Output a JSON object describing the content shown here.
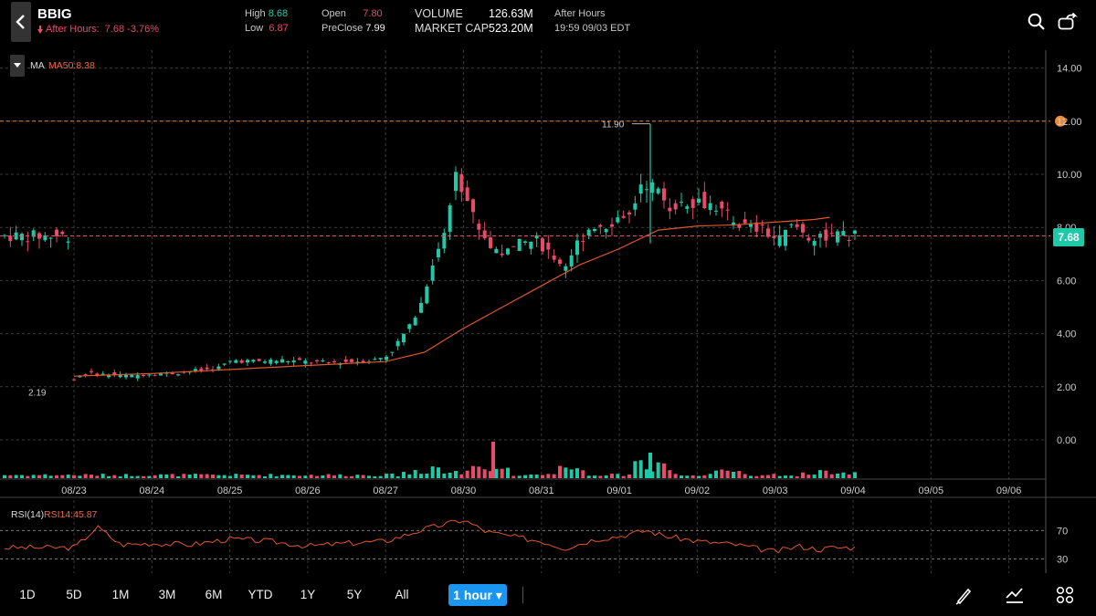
{
  "header": {
    "ticker": "BBIG",
    "after_hours_text": "After Hours:",
    "after_hours_value": "7.68 -3.76%",
    "high_label": "High",
    "high_value": "8.68",
    "low_label": "Low",
    "low_value": "6.87",
    "open_label": "Open",
    "open_value": "7.80",
    "preclose_label": "PreClose",
    "preclose_value": "7.99",
    "volume_label": "VOLUME",
    "volume_value": "126.63M",
    "mktcap_label": "MARKET CAP",
    "mktcap_value": "523.20M",
    "session_label": "After Hours",
    "session_time": "19:59 09/03 EDT"
  },
  "indicators": {
    "ma_label": "MA",
    "ma_value": "MA50:8.38",
    "rsi_label": "RSI(14)",
    "rsi_value": "RSI14:45.87"
  },
  "price_tag": "7.68",
  "bottom": {
    "ranges": [
      "1D",
      "5D",
      "1M",
      "3M",
      "6M",
      "YTD",
      "1Y",
      "5Y",
      "All"
    ],
    "interval": "1 hour ▾"
  },
  "colors": {
    "up": "#1fc9a8",
    "down": "#e84a6a",
    "ma_line": "#e0552e",
    "grid": "#3a3a3a",
    "interval_button": "#1a96f0"
  },
  "chart_data": {
    "type": "candlestick",
    "y_ticks": [
      "14.00",
      "12.00",
      "10.00",
      "8.00",
      "6.00",
      "4.00",
      "2.00",
      "0.00"
    ],
    "ylim": [
      0,
      14
    ],
    "x_labels": [
      "08/23",
      "08/24",
      "08/25",
      "08/26",
      "08/27",
      "08/30",
      "08/31",
      "09/01",
      "09/02",
      "09/03",
      "09/04",
      "09/05",
      "09/06"
    ],
    "annotations": {
      "high_label": "11.90",
      "low_label": "2.19"
    },
    "reference_lines": {
      "alert_level": 12.0,
      "last_price": 7.68
    },
    "price_points": [
      [
        0,
        2.2
      ],
      [
        0.2,
        2.5
      ],
      [
        0.5,
        2.45
      ],
      [
        0.8,
        2.4
      ],
      [
        1.0,
        2.5
      ],
      [
        1.3,
        2.5
      ],
      [
        1.6,
        2.6
      ],
      [
        1.9,
        2.7
      ],
      [
        2.1,
        3.0
      ],
      [
        2.4,
        2.95
      ],
      [
        2.7,
        3.0
      ],
      [
        3.0,
        2.95
      ],
      [
        3.3,
        2.9
      ],
      [
        3.6,
        2.95
      ],
      [
        3.9,
        3.0
      ],
      [
        4.1,
        3.2
      ],
      [
        4.3,
        4.0
      ],
      [
        4.5,
        5.0
      ],
      [
        4.7,
        7.0
      ],
      [
        4.85,
        8.0
      ],
      [
        4.95,
        10.4
      ],
      [
        5.05,
        9.5
      ],
      [
        5.2,
        8.3
      ],
      [
        5.4,
        7.3
      ],
      [
        5.6,
        7.0
      ],
      [
        5.8,
        7.4
      ],
      [
        6.0,
        7.5
      ],
      [
        6.2,
        7.0
      ],
      [
        6.35,
        6.5
      ],
      [
        6.5,
        7.3
      ],
      [
        6.7,
        8.1
      ],
      [
        6.9,
        8.1
      ],
      [
        7.1,
        8.5
      ],
      [
        7.2,
        8.4
      ],
      [
        7.35,
        9.8
      ],
      [
        7.5,
        9.5
      ],
      [
        7.7,
        8.8
      ],
      [
        7.9,
        9.0
      ],
      [
        8.1,
        9.0
      ],
      [
        8.3,
        8.8
      ],
      [
        8.5,
        8.3
      ],
      [
        8.7,
        8.0
      ],
      [
        8.9,
        7.9
      ],
      [
        9.1,
        7.5
      ],
      [
        9.3,
        8.1
      ],
      [
        9.5,
        7.6
      ],
      [
        9.7,
        7.68
      ]
    ],
    "ma50_points": [
      [
        0,
        2.4
      ],
      [
        1,
        2.5
      ],
      [
        2,
        2.65
      ],
      [
        3,
        2.8
      ],
      [
        4,
        2.95
      ],
      [
        4.5,
        3.3
      ],
      [
        5,
        4.2
      ],
      [
        5.5,
        5.0
      ],
      [
        6,
        5.8
      ],
      [
        6.5,
        6.6
      ],
      [
        7,
        7.2
      ],
      [
        7.5,
        7.9
      ],
      [
        8,
        8.05
      ],
      [
        8.5,
        8.1
      ],
      [
        9,
        8.2
      ],
      [
        9.5,
        8.3
      ],
      [
        9.7,
        8.38
      ]
    ],
    "volume_ticks": [],
    "rsi": {
      "levels": [
        "70",
        "30"
      ],
      "series": [
        [
          0,
          45
        ],
        [
          0.3,
          75
        ],
        [
          0.6,
          50
        ],
        [
          1,
          52
        ],
        [
          1.5,
          50
        ],
        [
          2,
          58
        ],
        [
          2.5,
          55
        ],
        [
          3,
          48
        ],
        [
          3.5,
          52
        ],
        [
          4,
          55
        ],
        [
          4.5,
          72
        ],
        [
          4.8,
          80
        ],
        [
          5.0,
          85
        ],
        [
          5.3,
          68
        ],
        [
          5.7,
          60
        ],
        [
          6,
          55
        ],
        [
          6.3,
          45
        ],
        [
          6.7,
          58
        ],
        [
          7,
          62
        ],
        [
          7.35,
          70
        ],
        [
          7.6,
          62
        ],
        [
          8,
          55
        ],
        [
          8.5,
          50
        ],
        [
          9,
          40
        ],
        [
          9.3,
          48
        ],
        [
          9.6,
          43
        ],
        [
          9.7,
          45.87
        ]
      ]
    }
  }
}
